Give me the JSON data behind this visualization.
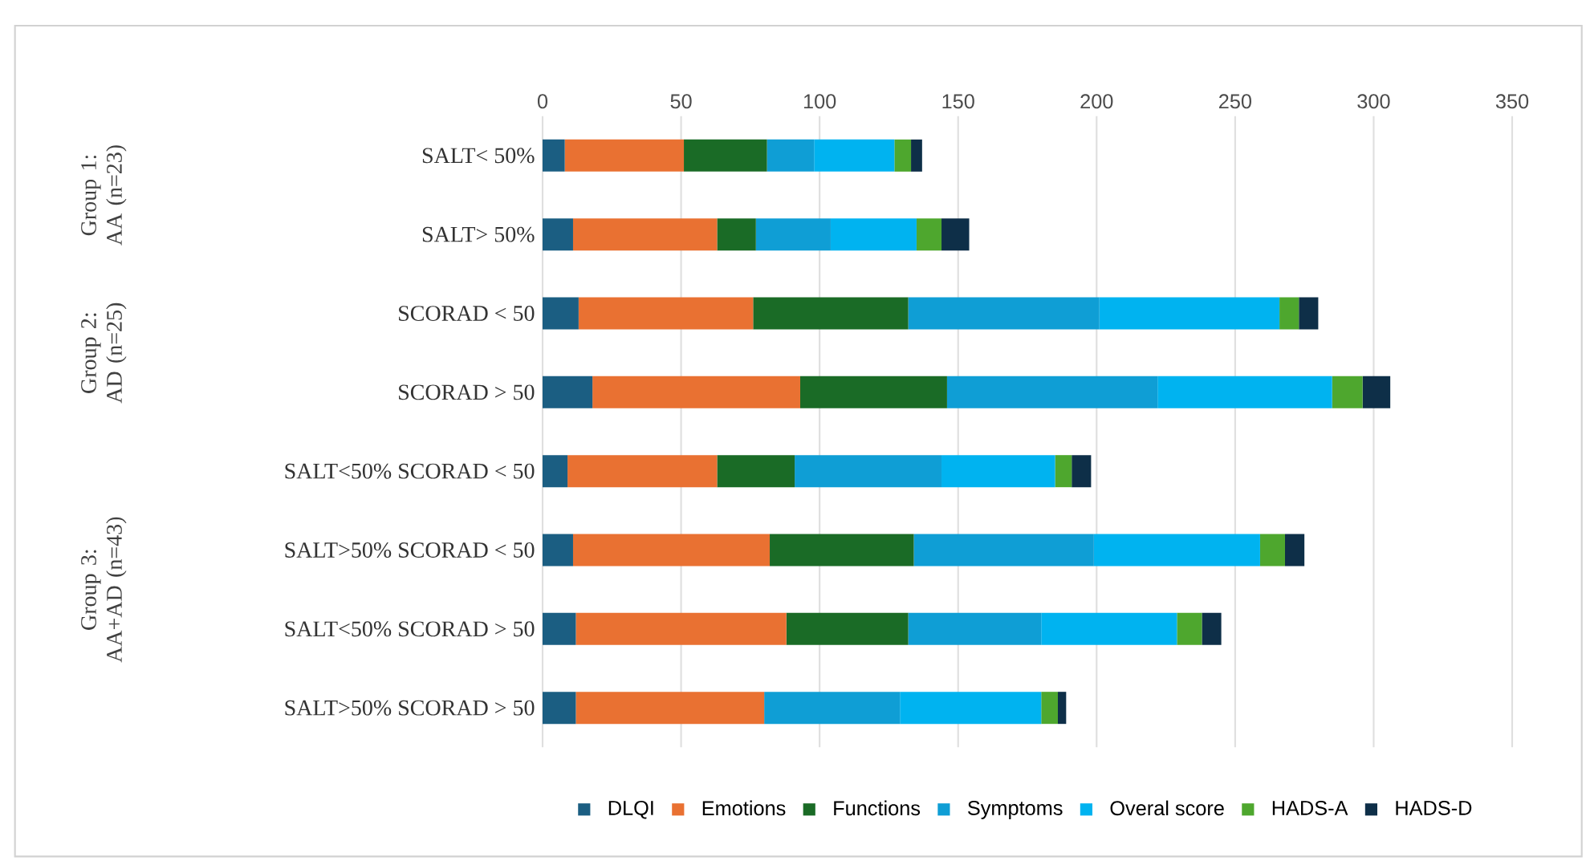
{
  "chart_data": {
    "type": "bar",
    "orientation": "horizontal",
    "stacked": true,
    "categories": [
      "SALT< 50%",
      "SALT> 50%",
      "SCORAD < 50",
      "SCORAD > 50",
      "SALT<50% SCORAD < 50",
      "SALT>50% SCORAD < 50",
      "SALT<50% SCORAD > 50",
      "SALT>50% SCORAD > 50"
    ],
    "series": [
      {
        "name": "DLQI",
        "color": "#1b5e82",
        "values": [
          8,
          11,
          13,
          18,
          9,
          11,
          12,
          12
        ]
      },
      {
        "name": "Emotions",
        "color": "#e97132",
        "values": [
          43,
          52,
          63,
          75,
          54,
          71,
          76,
          68
        ]
      },
      {
        "name": "Functions",
        "color": "#1a6b26",
        "values": [
          30,
          14,
          56,
          53,
          28,
          52,
          44,
          0
        ]
      },
      {
        "name": "Symptoms",
        "color": "#0f9ed5",
        "values": [
          17,
          27,
          69,
          76,
          53,
          65,
          48,
          49
        ]
      },
      {
        "name": "Overal score",
        "color": "#00b3f0",
        "values": [
          29,
          31,
          65,
          63,
          41,
          60,
          49,
          51
        ]
      },
      {
        "name": "HADS-A",
        "color": "#4ea72e",
        "values": [
          6,
          9,
          7,
          11,
          6,
          9,
          9,
          6
        ]
      },
      {
        "name": "HADS-D",
        "color": "#0e2f48",
        "values": [
          4,
          10,
          7,
          10,
          7,
          7,
          7,
          3
        ]
      }
    ],
    "xlim": [
      0,
      350
    ],
    "xticks": [
      0,
      50,
      100,
      150,
      200,
      250,
      300,
      350
    ],
    "grid": "x",
    "legend": "bottom",
    "annotations": [
      "Group 1: AA (n=23)",
      "Group 2: AD (n=25)",
      "Group 3: AA+AD (n=43)"
    ]
  }
}
